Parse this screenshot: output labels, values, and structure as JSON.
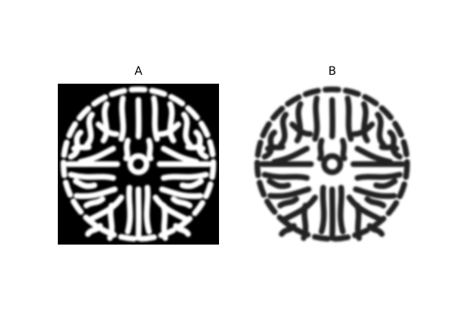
{
  "panels": [
    {
      "title": "A",
      "colors": {
        "background": "#000000",
        "stripes": "#ffffff",
        "inside": "#000000"
      }
    },
    {
      "title": "B",
      "colors": {
        "background": "#ffffff",
        "stripes": "#222222",
        "inside": "#ffffff"
      }
    }
  ]
}
